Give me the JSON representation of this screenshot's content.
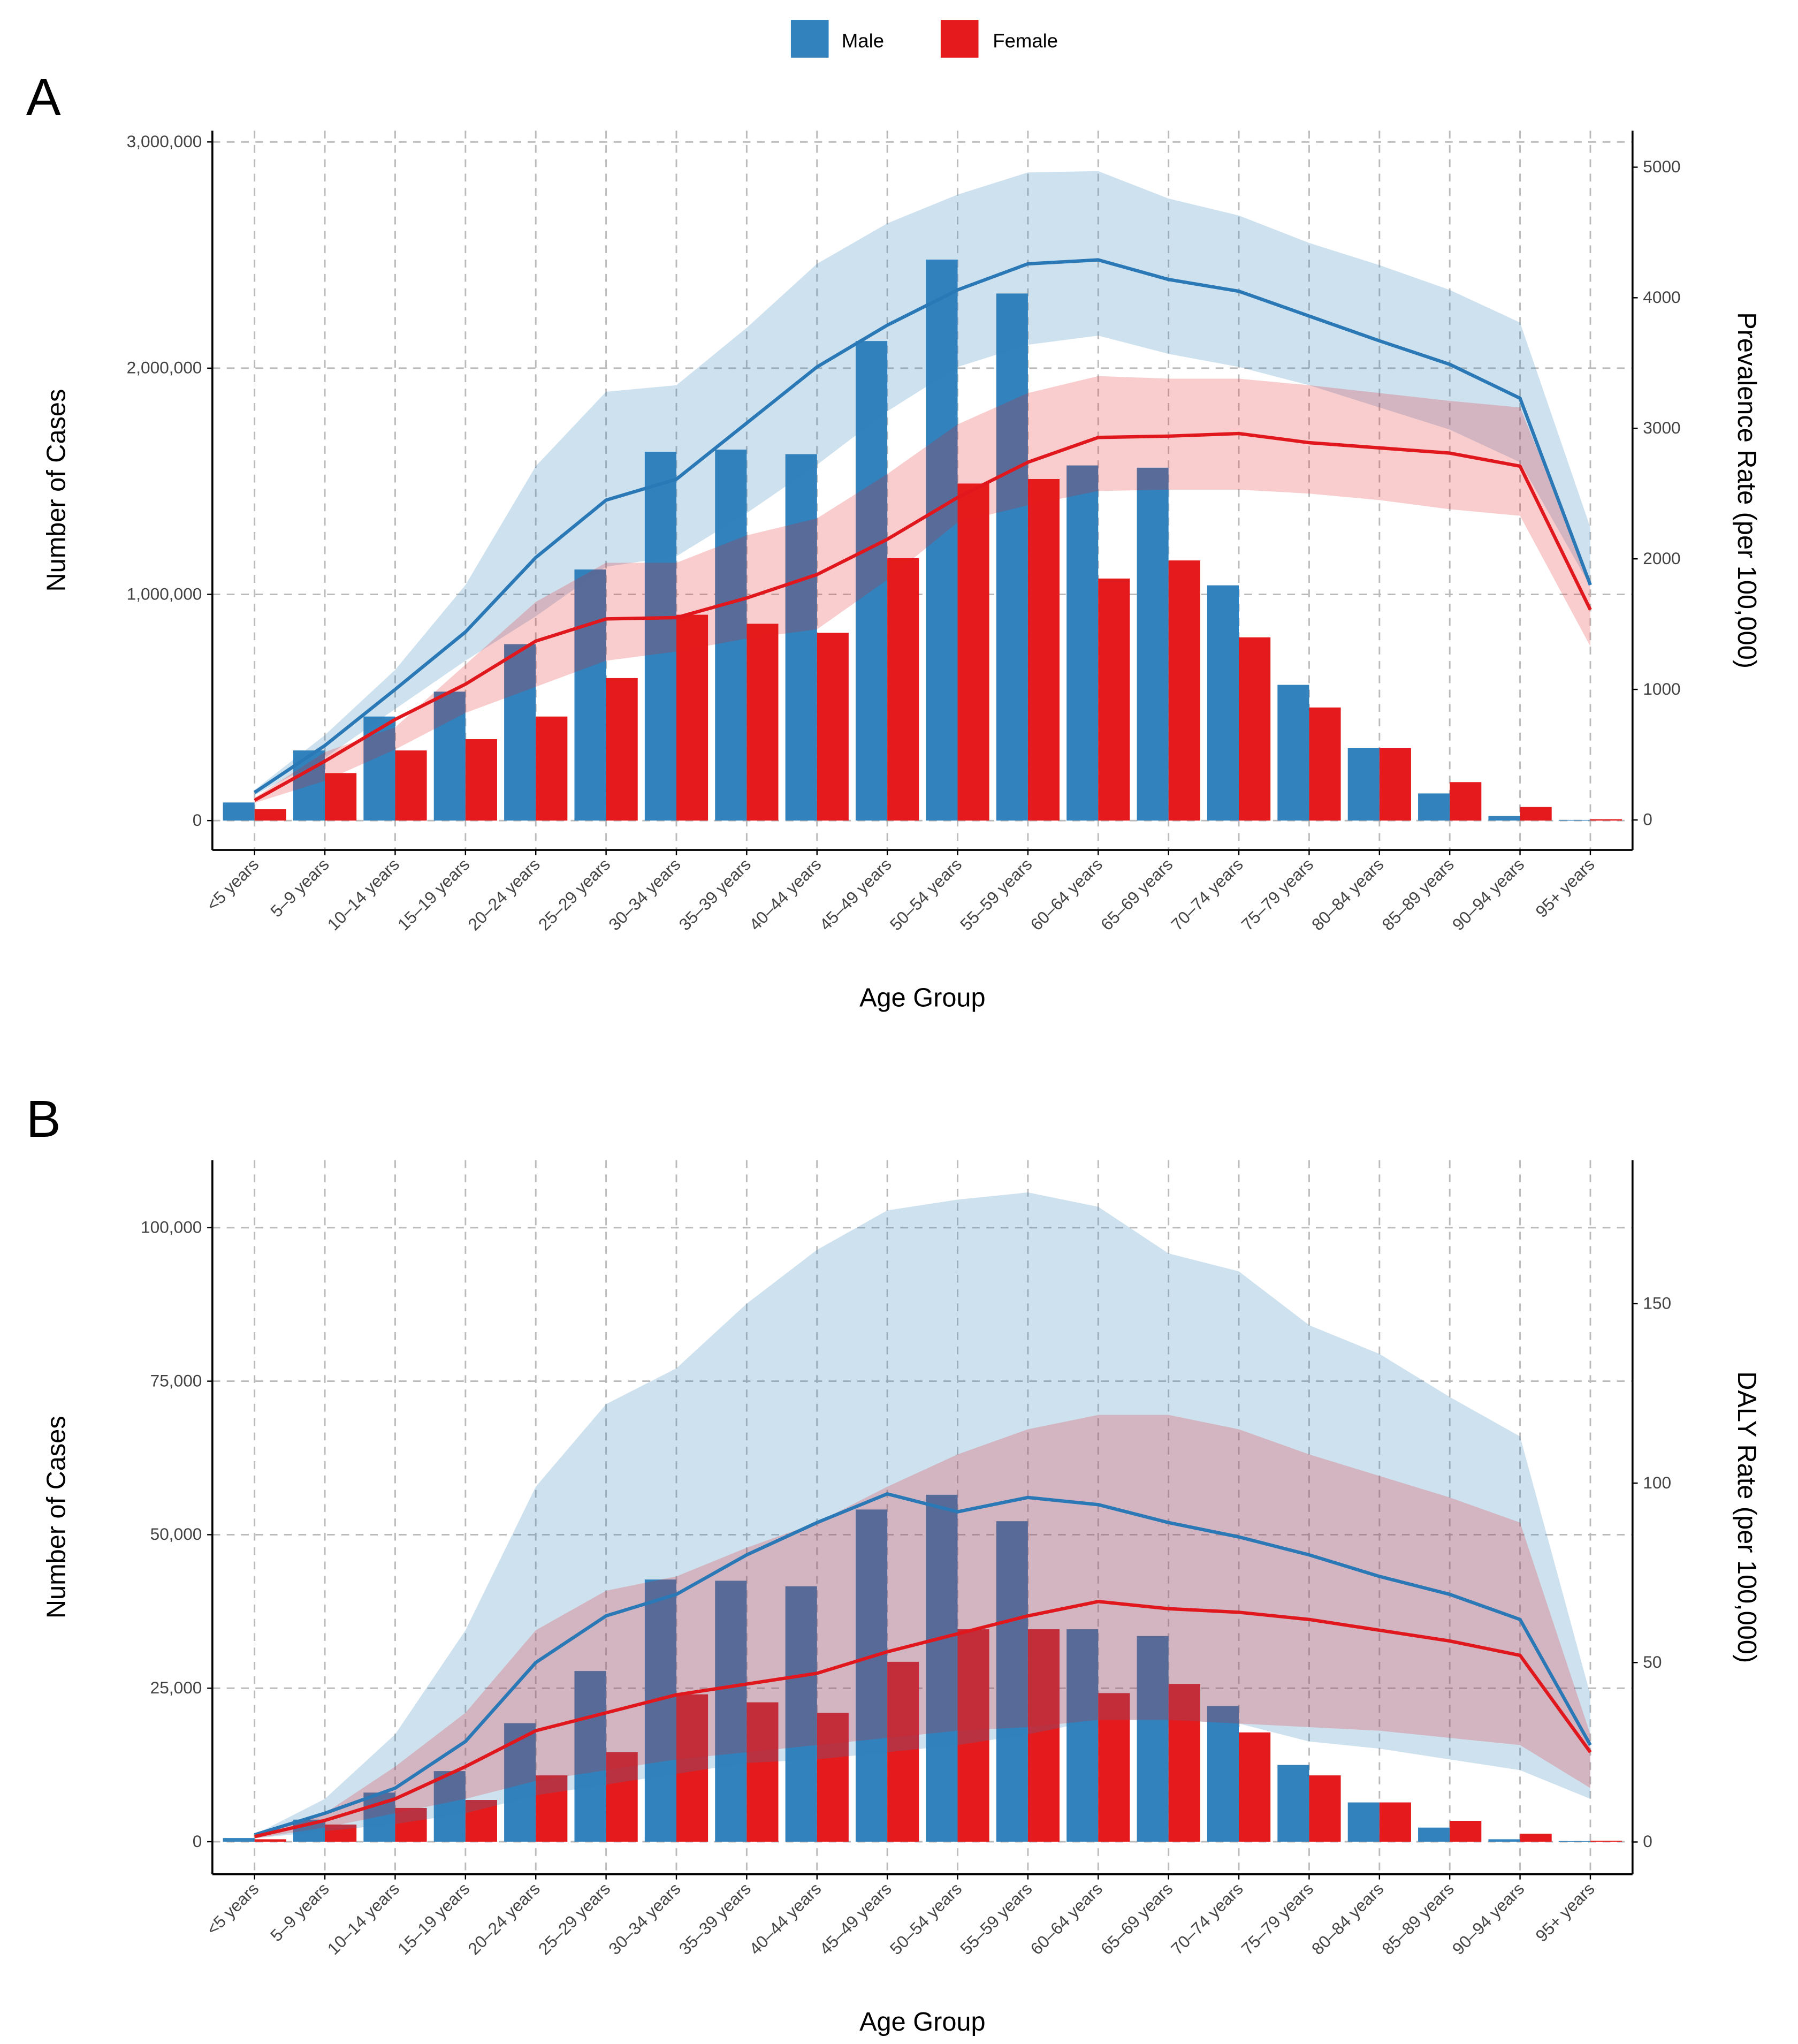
{
  "legend": {
    "items": [
      {
        "label": "Male",
        "color": "#3182BD"
      },
      {
        "label": "Female",
        "color": "#E41A1C"
      }
    ]
  },
  "chart_data": [
    {
      "panel_label": "A",
      "type": "bar+line",
      "xlabel": "Age Group",
      "ylabel": "Number of Cases",
      "y2label": "Prevalence Rate (per 100,000)",
      "categories": [
        "<5 years",
        "5–9 years",
        "10–14 years",
        "15–19 years",
        "20–24 years",
        "25–29 years",
        "30–34 years",
        "35–39 years",
        "40–44 years",
        "45–49 years",
        "50–54 years",
        "55–59 years",
        "60–64 years",
        "65–69 years",
        "70–74 years",
        "75–79 years",
        "80–84 years",
        "85–89 years",
        "90–94 years",
        "95+ years"
      ],
      "ylim": [
        -130000,
        3050000
      ],
      "y2lim": [
        -230,
        5280
      ],
      "yticks": [
        0,
        1000000,
        2000000,
        3000000
      ],
      "ytick_labels": [
        "0",
        "1,000,000",
        "2,000,000",
        "3,000,000"
      ],
      "y2ticks": [
        0,
        1000,
        2000,
        3000,
        4000,
        5000
      ],
      "y2tick_labels": [
        "0",
        "1000",
        "2000",
        "3000",
        "4000",
        "5000"
      ],
      "grid": true,
      "legend_position": "top",
      "bars": [
        {
          "name": "Male",
          "values": [
            80000,
            310000,
            460000,
            570000,
            780000,
            1110000,
            1630000,
            1640000,
            1620000,
            2120000,
            2480000,
            2330000,
            1570000,
            1560000,
            1040000,
            600000,
            320000,
            120000,
            20000,
            3000
          ]
        },
        {
          "name": "Female",
          "values": [
            50000,
            210000,
            310000,
            360000,
            460000,
            630000,
            910000,
            870000,
            830000,
            1160000,
            1490000,
            1510000,
            1070000,
            1150000,
            810000,
            500000,
            320000,
            170000,
            60000,
            6000
          ]
        }
      ],
      "lines": [
        {
          "name": "Male",
          "values": [
            210,
            570,
            1000,
            1440,
            2010,
            2450,
            2610,
            3040,
            3470,
            3790,
            4060,
            4260,
            4290,
            4140,
            4050,
            3860,
            3670,
            3490,
            3230,
            1800
          ],
          "upper": [
            230,
            650,
            1150,
            1800,
            2710,
            3280,
            3330,
            3770,
            4260,
            4570,
            4790,
            4960,
            4970,
            4760,
            4630,
            4420,
            4250,
            4060,
            3810,
            2240
          ],
          "lower": [
            190,
            475,
            850,
            1220,
            1560,
            1940,
            2020,
            2350,
            2720,
            3130,
            3470,
            3640,
            3710,
            3570,
            3470,
            3330,
            3160,
            2990,
            2740,
            1790
          ]
        },
        {
          "name": "Female",
          "values": [
            150,
            450,
            770,
            1040,
            1370,
            1540,
            1550,
            1700,
            1880,
            2150,
            2470,
            2740,
            2930,
            2940,
            2960,
            2890,
            2850,
            2810,
            2710,
            1610
          ],
          "upper": [
            170,
            520,
            710,
            1190,
            1670,
            1970,
            1970,
            2180,
            2310,
            2650,
            3030,
            3270,
            3400,
            3380,
            3380,
            3330,
            3270,
            3210,
            3160,
            1840
          ],
          "lower": [
            130,
            300,
            540,
            820,
            1020,
            1220,
            1290,
            1390,
            1460,
            1840,
            2280,
            2410,
            2520,
            2530,
            2530,
            2500,
            2450,
            2380,
            2330,
            1330
          ]
        }
      ]
    },
    {
      "panel_label": "B",
      "type": "bar+line",
      "xlabel": "Age Group",
      "ylabel": "Number of Cases",
      "y2label": "DALY Rate (per 100,000)",
      "categories": [
        "<5 years",
        "5–9 years",
        "10–14 years",
        "15–19 years",
        "20–24 years",
        "25–29 years",
        "30–34 years",
        "35–39 years",
        "40–44 years",
        "45–49 years",
        "50–54 years",
        "55–59 years",
        "60–64 years",
        "65–69 years",
        "70–74 years",
        "75–79 years",
        "80–84 years",
        "85–89 years",
        "90–94 years",
        "95+ years"
      ],
      "ylim": [
        -5300,
        111000
      ],
      "y2lim": [
        -9,
        190
      ],
      "yticks": [
        0,
        25000,
        50000,
        75000,
        100000
      ],
      "ytick_labels": [
        "0",
        "25,000",
        "50,000",
        "75,000",
        "100,000"
      ],
      "y2ticks": [
        0,
        50,
        100,
        150
      ],
      "y2tick_labels": [
        "0",
        "50",
        "100",
        "150"
      ],
      "grid": true,
      "bars": [
        {
          "name": "Male",
          "values": [
            600,
            3600,
            8000,
            11500,
            19300,
            27800,
            42700,
            42500,
            41600,
            54100,
            56500,
            52200,
            34600,
            33500,
            22100,
            12500,
            6400,
            2300,
            400,
            100
          ]
        },
        {
          "name": "Female",
          "values": [
            400,
            2800,
            5500,
            6800,
            10800,
            14600,
            24000,
            22700,
            21000,
            29300,
            34600,
            34600,
            24200,
            25700,
            17800,
            10800,
            6400,
            3400,
            1300,
            150
          ]
        }
      ],
      "lines": [
        {
          "name": "Male",
          "values": [
            2,
            8,
            15,
            28,
            50,
            63,
            69,
            80,
            89,
            97,
            92,
            96,
            94,
            89,
            85,
            80,
            74,
            69,
            62,
            27
          ],
          "upper": [
            2,
            12,
            30,
            59,
            99,
            122,
            132,
            150,
            165,
            176,
            179,
            181,
            177,
            164,
            159,
            144,
            136,
            124,
            113,
            41
          ],
          "lower": [
            1,
            3,
            5,
            8,
            13,
            16,
            19,
            22,
            23,
            25,
            27,
            30,
            34,
            34,
            33,
            28,
            26,
            23,
            20,
            12
          ]
        },
        {
          "name": "Female",
          "values": [
            1.5,
            6,
            12,
            21,
            31,
            36,
            41,
            44,
            47,
            53,
            58,
            63,
            67,
            65,
            64,
            62,
            59,
            56,
            52,
            25
          ],
          "upper": [
            2,
            8,
            21,
            36,
            59,
            70,
            74,
            82,
            89,
            99,
            108,
            115,
            119,
            119,
            115,
            108,
            102,
            96,
            89,
            30
          ],
          "lower": [
            1,
            4,
            8,
            12,
            17,
            20,
            23,
            25,
            27,
            29,
            31,
            32,
            34,
            34,
            33,
            32,
            31,
            29,
            27,
            15
          ]
        }
      ]
    }
  ]
}
